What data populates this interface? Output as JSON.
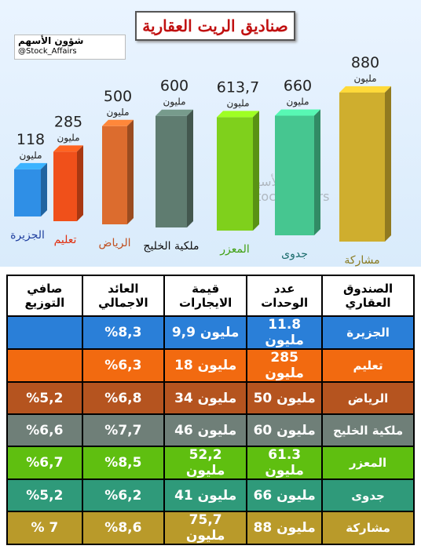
{
  "title": "صناديق الريت العقارية",
  "watermark": {
    "name": "شؤون الأسهم",
    "handle": "@Stock_Affairs"
  },
  "chart_data": {
    "type": "bar",
    "categories": [
      "الجزيرة",
      "تعليم",
      "الرياض",
      "ملكية الخليج",
      "المعزر",
      "جدوى",
      "مشاركة"
    ],
    "values": [
      118,
      285,
      500,
      600,
      613.7,
      660,
      880
    ],
    "value_labels": [
      "118",
      "285",
      "500",
      "600",
      "613,7",
      "660",
      "880"
    ],
    "value_unit": "مليون",
    "colors": [
      "#2f8fe6",
      "#f0501a",
      "#dc6c2e",
      "#5f7c70",
      "#7fd01c",
      "#46c690",
      "#cfae2e"
    ],
    "label_colors": [
      "#1f3f9f",
      "#e03010",
      "#c05020",
      "#111111",
      "#3fa010",
      "#1b6c6c",
      "#8a7a20"
    ]
  },
  "table": {
    "header": [
      "الصندوق العقاري",
      "عدد الوحدات",
      "قيمة الايجارات",
      "العائد الاجمالي",
      "صافي التوزيع"
    ],
    "rows": [
      [
        "الجزيرة",
        "11.8 مليون",
        "9,9 مليون",
        "%8,3",
        null
      ],
      [
        "تعليم",
        "285 مليون",
        "18 مليون",
        "%6,3",
        null
      ],
      [
        "الرياض",
        "50 مليون",
        "34 مليون",
        "%6,8",
        "%5,2"
      ],
      [
        "ملكية الخليج",
        "60 مليون",
        "46 مليون",
        "%7,7",
        "%6,6"
      ],
      [
        "المعزر",
        "61.3 مليون",
        "52,2 مليون",
        "%8,5",
        "%6,7"
      ],
      [
        "جدوى",
        "66 مليون",
        "41 مليون",
        "%6,2",
        "%5,2"
      ],
      [
        "مشاركة",
        "88 مليون",
        "75,7 مليون",
        "%8,6",
        "% 7"
      ]
    ],
    "row_colors": [
      "#2a7fd8",
      "#f26a10",
      "#b5541f",
      "#6f7f78",
      "#5fbf10",
      "#2f9a7a",
      "#b99a2a"
    ]
  }
}
